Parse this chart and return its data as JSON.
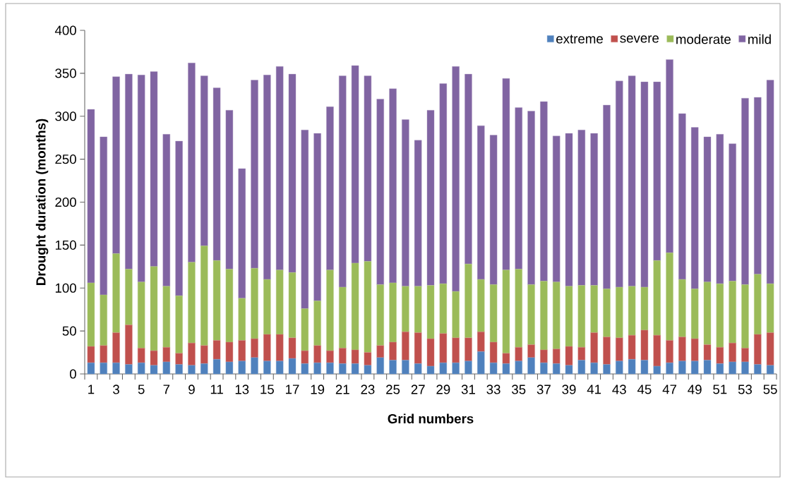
{
  "chart_data": {
    "type": "bar",
    "stacked": true,
    "xlabel": "Grid numbers",
    "ylabel": "Drought duration (months)",
    "categories": [
      "1",
      null,
      "3",
      null,
      "5",
      null,
      "7",
      null,
      "9",
      null,
      "11",
      null,
      "13",
      null,
      "15",
      null,
      "17",
      null,
      "19",
      null,
      "21",
      null,
      "23",
      null,
      "25",
      null,
      "27",
      null,
      "29",
      null,
      "31",
      null,
      "33",
      null,
      "35",
      null,
      "37",
      null,
      "39",
      null,
      "41",
      null,
      "43",
      null,
      "45",
      null,
      "47",
      null,
      "49",
      null,
      "51",
      null,
      "53",
      null,
      "55"
    ],
    "series": [
      {
        "name": "extreme",
        "color": "#4f81bd",
        "values": [
          13,
          13,
          13,
          11,
          13,
          10,
          14,
          11,
          10,
          12,
          17,
          14,
          15,
          19,
          15,
          15,
          18,
          12,
          13,
          13,
          12,
          12,
          10,
          19,
          16,
          16,
          12,
          9,
          13,
          13,
          15,
          26,
          13,
          12,
          15,
          19,
          13,
          12,
          10,
          16,
          13,
          11,
          15,
          17,
          16,
          9,
          13,
          15,
          15,
          16,
          12,
          14,
          14,
          11,
          10
        ]
      },
      {
        "name": "severe",
        "color": "#c0504d",
        "values": [
          19,
          20,
          35,
          46,
          17,
          17,
          17,
          13,
          26,
          21,
          22,
          23,
          24,
          22,
          31,
          31,
          24,
          15,
          20,
          14,
          18,
          16,
          15,
          14,
          21,
          33,
          36,
          32,
          34,
          29,
          27,
          23,
          24,
          12,
          16,
          15,
          15,
          17,
          22,
          15,
          35,
          32,
          27,
          28,
          35,
          36,
          26,
          28,
          26,
          18,
          19,
          22,
          16,
          35,
          38
        ]
      },
      {
        "name": "moderate",
        "color": "#9bbb59",
        "values": [
          74,
          59,
          92,
          65,
          77,
          98,
          71,
          67,
          94,
          116,
          93,
          85,
          49,
          82,
          64,
          75,
          76,
          49,
          52,
          94,
          71,
          101,
          106,
          71,
          69,
          53,
          54,
          62,
          58,
          54,
          86,
          61,
          67,
          97,
          91,
          70,
          80,
          78,
          70,
          72,
          55,
          56,
          59,
          57,
          50,
          87,
          102,
          67,
          58,
          73,
          74,
          72,
          74,
          70,
          57
        ]
      },
      {
        "name": "mild",
        "color": "#8064a2",
        "values": [
          202,
          184,
          206,
          227,
          241,
          227,
          177,
          180,
          232,
          198,
          201,
          185,
          151,
          219,
          238,
          237,
          231,
          208,
          195,
          190,
          246,
          230,
          216,
          216,
          226,
          194,
          170,
          204,
          233,
          262,
          221,
          179,
          174,
          223,
          188,
          202,
          209,
          170,
          178,
          181,
          177,
          214,
          240,
          245,
          239,
          208,
          225,
          193,
          188,
          169,
          174,
          160,
          217,
          206,
          237
        ]
      }
    ],
    "ylim": [
      0,
      400
    ],
    "yticks": [
      0,
      50,
      100,
      150,
      200,
      250,
      300,
      350,
      400
    ],
    "legend": "top right",
    "grid": false
  }
}
